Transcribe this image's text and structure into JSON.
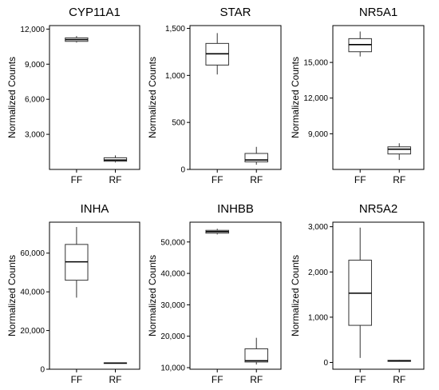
{
  "chart_data": [
    {
      "type": "box",
      "title": "CYP11A1",
      "ylabel": "Normalized Counts",
      "categories": [
        "FF",
        "RF"
      ],
      "yticks": [
        3000,
        6000,
        9000,
        12000
      ],
      "ytick_labels": [
        "3,000",
        "6,000",
        "9,000",
        "12,000"
      ],
      "ylim": [
        0,
        12300
      ],
      "boxes": [
        {
          "category": "FF",
          "whisker_low": 10850,
          "q1": 10950,
          "median": 11100,
          "q3": 11250,
          "whisker_high": 11400
        },
        {
          "category": "RF",
          "whisker_low": 600,
          "q1": 700,
          "median": 800,
          "q3": 1000,
          "whisker_high": 1200
        }
      ]
    },
    {
      "type": "box",
      "title": "STAR",
      "ylabel": "Normalized Counts",
      "categories": [
        "FF",
        "RF"
      ],
      "yticks": [
        0,
        500,
        1000,
        1500
      ],
      "ytick_labels": [
        "0",
        "500",
        "1,000",
        "1,500"
      ],
      "ylim": [
        0,
        1530
      ],
      "boxes": [
        {
          "category": "FF",
          "whisker_low": 1010,
          "q1": 1110,
          "median": 1230,
          "q3": 1340,
          "whisker_high": 1450
        },
        {
          "category": "RF",
          "whisker_low": 50,
          "q1": 80,
          "median": 100,
          "q3": 170,
          "whisker_high": 240
        }
      ]
    },
    {
      "type": "box",
      "title": "NR5A1",
      "ylabel": "Normalized Counts",
      "categories": [
        "FF",
        "RF"
      ],
      "yticks": [
        9000,
        12000,
        15000
      ],
      "ytick_labels": [
        "9,000",
        "12,000",
        "15,000"
      ],
      "ylim": [
        6000,
        18100
      ],
      "boxes": [
        {
          "category": "FF",
          "whisker_low": 15500,
          "q1": 15900,
          "median": 16500,
          "q3": 17000,
          "whisker_high": 17600
        },
        {
          "category": "RF",
          "whisker_low": 6800,
          "q1": 7300,
          "median": 7700,
          "q3": 7900,
          "whisker_high": 8200
        }
      ]
    },
    {
      "type": "box",
      "title": "INHA",
      "ylabel": "Normalized Counts",
      "categories": [
        "FF",
        "RF"
      ],
      "yticks": [
        0,
        20000,
        40000,
        60000
      ],
      "ytick_labels": [
        "0",
        "20,000",
        "40,000",
        "60,000"
      ],
      "ylim": [
        0,
        76000
      ],
      "boxes": [
        {
          "category": "FF",
          "whisker_low": 37000,
          "q1": 46000,
          "median": 55500,
          "q3": 64500,
          "whisker_high": 73500
        },
        {
          "category": "RF",
          "whisker_low": 3200,
          "q1": 3200,
          "median": 3200,
          "q3": 3300,
          "whisker_high": 3300
        }
      ]
    },
    {
      "type": "box",
      "title": "INHBB",
      "ylabel": "Normalized Counts",
      "categories": [
        "FF",
        "RF"
      ],
      "yticks": [
        10000,
        20000,
        30000,
        40000,
        50000
      ],
      "ytick_labels": [
        "10,000",
        "20,000",
        "30,000",
        "40,000",
        "50,000"
      ],
      "ylim": [
        9500,
        56300
      ],
      "boxes": [
        {
          "category": "FF",
          "whisker_low": 52400,
          "q1": 52800,
          "median": 53300,
          "q3": 53700,
          "whisker_high": 54200
        },
        {
          "category": "RF",
          "whisker_low": 11000,
          "q1": 11800,
          "median": 12200,
          "q3": 16000,
          "whisker_high": 19500
        }
      ]
    },
    {
      "type": "box",
      "title": "NR5A2",
      "ylabel": "Normalized Counts",
      "categories": [
        "FF",
        "RF"
      ],
      "yticks": [
        0,
        1000,
        2000,
        3000
      ],
      "ytick_labels": [
        "0",
        "1,000",
        "2,000",
        "3,000"
      ],
      "ylim": [
        -150,
        3100
      ],
      "boxes": [
        {
          "category": "FF",
          "whisker_low": 100,
          "q1": 820,
          "median": 1530,
          "q3": 2260,
          "whisker_high": 2980
        },
        {
          "category": "RF",
          "whisker_low": 20,
          "q1": 25,
          "median": 35,
          "q3": 45,
          "whisker_high": 55
        }
      ]
    }
  ]
}
